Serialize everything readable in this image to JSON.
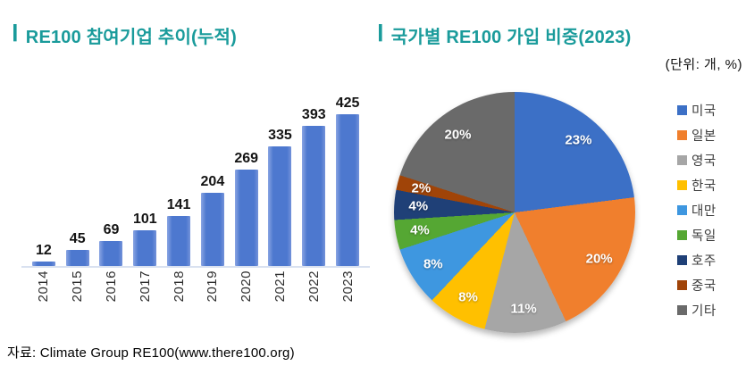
{
  "left_panel": {
    "marker": "|",
    "title": "RE100 참여기업 추이(누적)"
  },
  "right_panel": {
    "marker": "|",
    "title": "국가별 RE100 가입 비중(2023)",
    "unit_label": "(단위: 개, %)"
  },
  "source": "자료: Climate Group RE100(www.there100.org)",
  "colors": {
    "title_accent": "#1A9B9B",
    "bar_blue": "#4D78CF",
    "baseline": "#D9E1F0"
  },
  "chart_data": [
    {
      "type": "bar",
      "title": "RE100 참여기업 추이(누적)",
      "categories": [
        "2014",
        "2015",
        "2016",
        "2017",
        "2018",
        "2019",
        "2020",
        "2021",
        "2022",
        "2023"
      ],
      "values": [
        12,
        45,
        69,
        101,
        141,
        204,
        269,
        335,
        393,
        425
      ],
      "bar_color": "#4D78CF",
      "ylim": [
        0,
        425
      ],
      "data_labels": true,
      "grid": false,
      "x_tick_rotation": 90
    },
    {
      "type": "pie",
      "title": "국가별 RE100 가입 비중(2023)",
      "labels": [
        "미국",
        "일본",
        "영국",
        "한국",
        "대만",
        "독일",
        "호주",
        "중국",
        "기타"
      ],
      "values": [
        23,
        20,
        11,
        8,
        8,
        4,
        4,
        2,
        20
      ],
      "value_labels": [
        "23%",
        "20%",
        "11%",
        "8%",
        "8%",
        "4%",
        "4%",
        "2%",
        "20%"
      ],
      "colors": [
        "#3C70C6",
        "#F07F2D",
        "#A6A6A6",
        "#FFC000",
        "#3E97E0",
        "#55A733",
        "#1F4077",
        "#A04408",
        "#6A6A6A"
      ],
      "start_angle_deg": 0,
      "direction": "clockwise",
      "legend_position": "right"
    }
  ]
}
